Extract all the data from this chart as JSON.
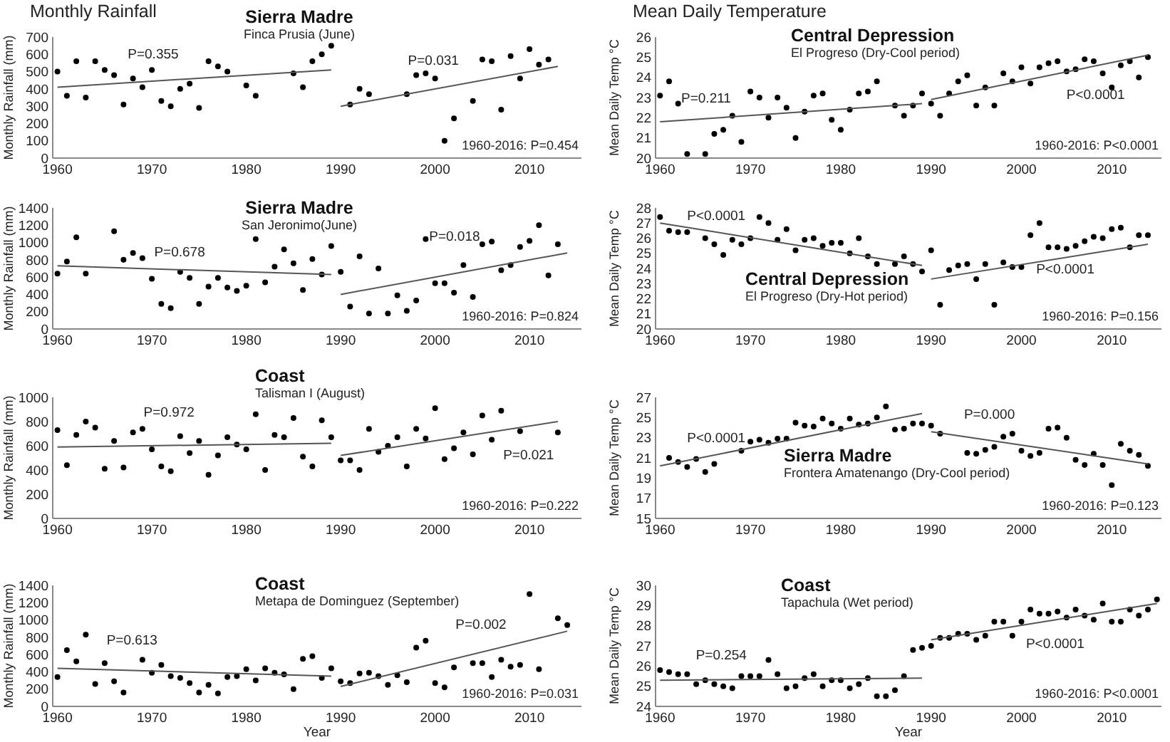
{
  "chart_data": [
    {
      "type": "scatter",
      "title": "Sierra Madre",
      "subtitle": "Finca Prusia (June)",
      "ylabel": "Monthly Rainfall (mm)",
      "xlim": [
        1959.5,
        2015.5
      ],
      "xticks": [
        1960,
        1970,
        1980,
        1990,
        2000,
        2010
      ],
      "ylim": [
        0,
        700
      ],
      "yticks": [
        0,
        100,
        200,
        300,
        400,
        500,
        600,
        700
      ],
      "annotations": [
        "Monthly Rainfall",
        "P=0.355",
        "P=0.031",
        "1960-2016: P=0.454"
      ],
      "series": [
        {
          "marker": "circle",
          "color": "#000000",
          "x": [
            1960,
            1961,
            1962,
            1963,
            1964,
            1965,
            1966,
            1967,
            1968,
            1969,
            1970,
            1971,
            1972,
            1973,
            1974,
            1975,
            1976,
            1977,
            1978,
            1980,
            1981,
            1985,
            1986,
            1987,
            1988,
            1989,
            1991,
            1992,
            1993,
            1997,
            1998,
            1999,
            2000,
            2001,
            2002,
            2004,
            2005,
            2006,
            2007,
            2008,
            2009,
            2010,
            2011,
            2012
          ],
          "values": [
            500,
            360,
            560,
            350,
            560,
            510,
            480,
            310,
            460,
            410,
            510,
            330,
            300,
            400,
            430,
            290,
            560,
            530,
            500,
            420,
            360,
            490,
            410,
            560,
            600,
            650,
            310,
            400,
            370,
            370,
            480,
            490,
            460,
            100,
            230,
            330,
            570,
            560,
            280,
            590,
            460,
            630,
            540,
            570
          ]
        },
        {
          "type": "line",
          "color": "#555555",
          "x": [
            1960,
            1989
          ],
          "values": [
            410,
            510
          ]
        },
        {
          "type": "line",
          "color": "#555555",
          "x": [
            1990,
            2013
          ],
          "values": [
            300,
            530
          ]
        }
      ]
    },
    {
      "type": "scatter",
      "title": "Central Depression",
      "subtitle": "El Progreso (Dry-Cool period)",
      "ylabel": "Mean Daily Temp °C",
      "xlim": [
        1959.5,
        2015.5
      ],
      "xticks": [
        1960,
        1970,
        1980,
        1990,
        2000,
        2010
      ],
      "ylim": [
        20,
        26
      ],
      "yticks": [
        20,
        21,
        22,
        23,
        24,
        25,
        26
      ],
      "annotations": [
        "Mean Daily Temperature",
        "P=0.211",
        "P<0.0001",
        "1960-2016: P<0.0001"
      ],
      "series": [
        {
          "marker": "circle",
          "color": "#000000",
          "x": [
            1960,
            1961,
            1962,
            1963,
            1965,
            1966,
            1967,
            1968,
            1969,
            1970,
            1971,
            1972,
            1973,
            1974,
            1975,
            1976,
            1977,
            1978,
            1979,
            1980,
            1981,
            1982,
            1983,
            1984,
            1986,
            1987,
            1988,
            1989,
            1990,
            1991,
            1992,
            1993,
            1994,
            1995,
            1996,
            1997,
            1998,
            1999,
            2000,
            2001,
            2002,
            2003,
            2004,
            2005,
            2006,
            2007,
            2008,
            2009,
            2010,
            2011,
            2012,
            2013,
            2014
          ],
          "values": [
            23.1,
            23.8,
            22.7,
            20.2,
            20.2,
            21.2,
            21.4,
            22.1,
            20.8,
            23.3,
            23.0,
            22.0,
            23.0,
            22.5,
            21.0,
            22.3,
            23.1,
            23.2,
            21.9,
            21.4,
            22.4,
            23.2,
            23.3,
            23.8,
            22.6,
            22.1,
            22.6,
            23.2,
            22.7,
            22.1,
            23.2,
            23.8,
            24.1,
            22.6,
            23.5,
            22.6,
            24.2,
            23.8,
            24.5,
            23.7,
            24.5,
            24.7,
            24.8,
            24.3,
            24.4,
            24.9,
            24.8,
            24.2,
            23.5,
            24.6,
            24.8,
            24.0,
            25.0
          ]
        },
        {
          "type": "line",
          "color": "#555555",
          "x": [
            1960,
            1989
          ],
          "values": [
            21.8,
            22.7
          ]
        },
        {
          "type": "line",
          "color": "#555555",
          "x": [
            1990,
            2014
          ],
          "values": [
            22.9,
            25.1
          ]
        }
      ]
    },
    {
      "type": "scatter",
      "title": "Sierra Madre",
      "subtitle": "San Jeronimo(June)",
      "ylabel": "Monthly Rainfall (mm)",
      "xlim": [
        1959.5,
        2015.5
      ],
      "xticks": [
        1960,
        1970,
        1980,
        1990,
        2000,
        2010
      ],
      "ylim": [
        0,
        1400
      ],
      "yticks": [
        0,
        200,
        400,
        600,
        800,
        1000,
        1200,
        1400
      ],
      "annotations": [
        "P=0.678",
        "P=0.018",
        "1960-2016: P=0.824"
      ],
      "series": [
        {
          "marker": "circle",
          "color": "#000000",
          "x": [
            1960,
            1961,
            1962,
            1963,
            1966,
            1967,
            1968,
            1969,
            1970,
            1971,
            1972,
            1973,
            1974,
            1975,
            1976,
            1977,
            1978,
            1979,
            1980,
            1981,
            1982,
            1983,
            1984,
            1985,
            1986,
            1987,
            1988,
            1989,
            1990,
            1991,
            1992,
            1993,
            1994,
            1995,
            1996,
            1997,
            1998,
            1999,
            2000,
            2001,
            2002,
            2003,
            2004,
            2005,
            2006,
            2007,
            2008,
            2009,
            2010,
            2011,
            2012,
            2013
          ],
          "values": [
            640,
            780,
            1060,
            640,
            1130,
            800,
            880,
            820,
            580,
            290,
            240,
            660,
            590,
            290,
            490,
            590,
            480,
            440,
            500,
            1040,
            540,
            720,
            920,
            760,
            450,
            810,
            630,
            960,
            660,
            260,
            840,
            180,
            700,
            180,
            390,
            210,
            330,
            1040,
            530,
            530,
            420,
            740,
            370,
            980,
            1010,
            680,
            740,
            950,
            1020,
            1200,
            620,
            980
          ]
        },
        {
          "type": "line",
          "color": "#555555",
          "x": [
            1960,
            1989
          ],
          "values": [
            730,
            630
          ]
        },
        {
          "type": "line",
          "color": "#555555",
          "x": [
            1990,
            2014
          ],
          "values": [
            400,
            880
          ]
        }
      ]
    },
    {
      "type": "scatter",
      "title": "Central Depression",
      "subtitle": "El Progreso (Dry-Hot period)",
      "ylabel": "Mean Daily Temp °C",
      "xlim": [
        1959.5,
        2015.5
      ],
      "xticks": [
        1960,
        1970,
        1980,
        1990,
        2000,
        2010
      ],
      "ylim": [
        20,
        28
      ],
      "yticks": [
        20,
        21,
        22,
        23,
        24,
        25,
        26,
        27,
        28
      ],
      "annotations": [
        "P<0.0001",
        "P<0.0001",
        "1960-2016: P=0.156"
      ],
      "series": [
        {
          "marker": "circle",
          "color": "#000000",
          "x": [
            1960,
            1961,
            1962,
            1963,
            1965,
            1966,
            1967,
            1968,
            1969,
            1970,
            1971,
            1972,
            1973,
            1974,
            1975,
            1976,
            1977,
            1978,
            1979,
            1980,
            1981,
            1982,
            1983,
            1984,
            1986,
            1987,
            1988,
            1989,
            1990,
            1991,
            1992,
            1993,
            1994,
            1995,
            1996,
            1997,
            1998,
            1999,
            2000,
            2001,
            2002,
            2003,
            2004,
            2005,
            2006,
            2007,
            2008,
            2009,
            2010,
            2011,
            2012,
            2013,
            2014
          ],
          "values": [
            27.4,
            26.5,
            26.4,
            26.4,
            26.0,
            25.6,
            24.9,
            25.9,
            25.6,
            26.0,
            27.4,
            27.0,
            25.9,
            26.6,
            25.2,
            25.9,
            26.0,
            25.5,
            25.7,
            25.7,
            25.0,
            26.0,
            24.8,
            24.3,
            24.3,
            24.8,
            24.3,
            23.8,
            25.2,
            21.6,
            23.9,
            24.2,
            24.3,
            23.3,
            24.3,
            21.6,
            24.4,
            24.1,
            24.1,
            26.2,
            27.0,
            25.4,
            25.4,
            25.3,
            25.5,
            25.8,
            26.1,
            26.0,
            26.6,
            26.7,
            25.4,
            26.2,
            26.2
          ]
        },
        {
          "type": "line",
          "color": "#555555",
          "x": [
            1960,
            1989
          ],
          "values": [
            27.0,
            24.2
          ]
        },
        {
          "type": "line",
          "color": "#555555",
          "x": [
            1990,
            2014
          ],
          "values": [
            23.3,
            25.6
          ]
        }
      ]
    },
    {
      "type": "scatter",
      "title": "Coast",
      "subtitle": "Talisman I (August)",
      "ylabel": "Monthly Rainfall (mm)",
      "xlim": [
        1959.5,
        2015.5
      ],
      "xticks": [
        1960,
        1970,
        1980,
        1990,
        2000,
        2010
      ],
      "ylim": [
        0,
        1000
      ],
      "yticks": [
        0,
        200,
        400,
        600,
        800,
        1000
      ],
      "annotations": [
        "P=0.972",
        "P=0.021",
        "1960-2016: P=0.222"
      ],
      "series": [
        {
          "marker": "circle",
          "color": "#000000",
          "x": [
            1960,
            1961,
            1962,
            1963,
            1964,
            1965,
            1966,
            1967,
            1968,
            1969,
            1970,
            1971,
            1972,
            1973,
            1974,
            1975,
            1976,
            1977,
            1978,
            1979,
            1980,
            1981,
            1982,
            1983,
            1984,
            1985,
            1986,
            1987,
            1988,
            1989,
            1990,
            1991,
            1992,
            1993,
            1994,
            1995,
            1996,
            1997,
            1998,
            1999,
            2000,
            2001,
            2002,
            2003,
            2004,
            2005,
            2006,
            2007,
            2009,
            2013
          ],
          "values": [
            730,
            440,
            690,
            800,
            750,
            410,
            640,
            420,
            710,
            740,
            570,
            430,
            390,
            680,
            540,
            640,
            360,
            520,
            670,
            610,
            570,
            860,
            400,
            690,
            670,
            830,
            510,
            430,
            810,
            670,
            480,
            480,
            400,
            740,
            550,
            600,
            670,
            430,
            740,
            660,
            910,
            490,
            580,
            710,
            530,
            850,
            650,
            890,
            720,
            710
          ]
        },
        {
          "type": "line",
          "color": "#555555",
          "x": [
            1960,
            1989
          ],
          "values": [
            590,
            620
          ]
        },
        {
          "type": "line",
          "color": "#555555",
          "x": [
            1990,
            2013
          ],
          "values": [
            520,
            800
          ]
        }
      ]
    },
    {
      "type": "scatter",
      "title": "Sierra Madre",
      "subtitle": "Frontera Amatenango (Dry-Cool period)",
      "ylabel": "Mean Daily Temp °C",
      "xlim": [
        1959.5,
        2015.5
      ],
      "xticks": [
        1960,
        1970,
        1980,
        1990,
        2000,
        2010
      ],
      "ylim": [
        15,
        27
      ],
      "yticks": [
        15,
        17,
        19,
        21,
        23,
        25,
        27
      ],
      "annotations": [
        "P<0.0001",
        "P=0.000",
        "1960-2016: P=0.123"
      ],
      "series": [
        {
          "marker": "circle",
          "color": "#000000",
          "x": [
            1961,
            1962,
            1963,
            1964,
            1965,
            1966,
            1969,
            1970,
            1971,
            1972,
            1973,
            1974,
            1975,
            1976,
            1977,
            1978,
            1979,
            1980,
            1981,
            1982,
            1983,
            1984,
            1985,
            1986,
            1987,
            1988,
            1989,
            1990,
            1991,
            1994,
            1995,
            1996,
            1997,
            1998,
            1999,
            2000,
            2001,
            2002,
            2003,
            2004,
            2005,
            2006,
            2007,
            2008,
            2009,
            2010,
            2011,
            2012,
            2013,
            2014
          ],
          "values": [
            21.0,
            20.6,
            20.1,
            20.9,
            19.6,
            20.4,
            21.7,
            22.6,
            22.8,
            22.5,
            22.9,
            22.9,
            24.5,
            24.2,
            24.1,
            24.9,
            24.4,
            23.9,
            24.9,
            24.3,
            24.4,
            25.0,
            26.1,
            23.8,
            23.9,
            24.4,
            24.4,
            24.2,
            23.4,
            21.5,
            21.4,
            21.8,
            22.1,
            23.1,
            23.4,
            21.7,
            21.2,
            21.5,
            23.9,
            24.0,
            23.0,
            20.8,
            20.3,
            21.4,
            20.3,
            18.3,
            22.4,
            21.7,
            21.3,
            20.2
          ]
        },
        {
          "type": "line",
          "color": "#555555",
          "x": [
            1960,
            1989
          ],
          "values": [
            20.2,
            25.4
          ]
        },
        {
          "type": "line",
          "color": "#555555",
          "x": [
            1990,
            2014
          ],
          "values": [
            23.6,
            20.4
          ]
        }
      ]
    },
    {
      "type": "scatter",
      "title": "Coast",
      "subtitle": "Metapa de Dominguez (September)",
      "xlabel": "Year",
      "ylabel": "Monthly Rainfall (mm)",
      "xlim": [
        1959.5,
        2015.5
      ],
      "xticks": [
        1960,
        1970,
        1980,
        1990,
        2000,
        2010
      ],
      "ylim": [
        0,
        1400
      ],
      "yticks": [
        0,
        200,
        400,
        600,
        800,
        1000,
        1200,
        1400
      ],
      "annotations": [
        "P=0.613",
        "P=0.002",
        "1960-2016: P=0.031"
      ],
      "series": [
        {
          "marker": "circle",
          "color": "#000000",
          "x": [
            1960,
            1961,
            1962,
            1963,
            1964,
            1965,
            1966,
            1967,
            1969,
            1970,
            1971,
            1972,
            1973,
            1974,
            1975,
            1976,
            1977,
            1978,
            1979,
            1980,
            1981,
            1982,
            1983,
            1984,
            1985,
            1986,
            1987,
            1988,
            1989,
            1990,
            1991,
            1992,
            1993,
            1994,
            1995,
            1996,
            1997,
            1998,
            1999,
            2000,
            2001,
            2002,
            2004,
            2005,
            2006,
            2007,
            2008,
            2009,
            2010,
            2011,
            2013,
            2014
          ],
          "values": [
            340,
            650,
            520,
            830,
            260,
            500,
            290,
            160,
            540,
            390,
            480,
            350,
            330,
            270,
            160,
            250,
            150,
            340,
            350,
            430,
            300,
            440,
            390,
            370,
            200,
            550,
            580,
            330,
            440,
            290,
            270,
            380,
            390,
            350,
            250,
            360,
            280,
            680,
            760,
            270,
            220,
            450,
            500,
            500,
            340,
            540,
            460,
            480,
            1300,
            430,
            1020,
            940
          ]
        },
        {
          "type": "line",
          "color": "#555555",
          "x": [
            1960,
            1989
          ],
          "values": [
            440,
            350
          ]
        },
        {
          "type": "line",
          "color": "#555555",
          "x": [
            1990,
            2014
          ],
          "values": [
            230,
            870
          ]
        }
      ]
    },
    {
      "type": "scatter",
      "title": "Coast",
      "subtitle": "Tapachula (Wet period)",
      "xlabel": "Year",
      "ylabel": "Mean Daily Temp °C",
      "xlim": [
        1959.5,
        2015.5
      ],
      "xticks": [
        1960,
        1970,
        1980,
        1990,
        2000,
        2010
      ],
      "ylim": [
        24,
        30
      ],
      "yticks": [
        24,
        25,
        26,
        27,
        28,
        29,
        30
      ],
      "annotations": [
        "P=0.254",
        "P<0.0001",
        "1960-2016: P<0.0001"
      ],
      "series": [
        {
          "marker": "circle",
          "color": "#000000",
          "x": [
            1960,
            1961,
            1962,
            1963,
            1964,
            1965,
            1966,
            1967,
            1968,
            1969,
            1970,
            1971,
            1972,
            1973,
            1974,
            1975,
            1976,
            1977,
            1978,
            1979,
            1980,
            1981,
            1982,
            1983,
            1984,
            1985,
            1986,
            1987,
            1988,
            1989,
            1990,
            1991,
            1992,
            1993,
            1994,
            1995,
            1996,
            1997,
            1998,
            1999,
            2000,
            2001,
            2002,
            2003,
            2004,
            2005,
            2006,
            2007,
            2008,
            2009,
            2010,
            2011,
            2012,
            2013,
            2014,
            2015
          ],
          "values": [
            25.8,
            25.7,
            25.6,
            25.6,
            25.1,
            25.3,
            25.1,
            25.0,
            24.9,
            25.5,
            25.5,
            25.5,
            26.3,
            25.6,
            24.9,
            25.0,
            25.4,
            25.6,
            25.0,
            25.3,
            25.3,
            24.9,
            25.1,
            25.4,
            24.5,
            24.5,
            24.8,
            25.5,
            26.8,
            26.9,
            27.0,
            27.4,
            27.4,
            27.6,
            27.6,
            27.3,
            27.5,
            28.2,
            28.2,
            27.5,
            28.2,
            28.8,
            28.6,
            28.6,
            28.7,
            28.4,
            28.8,
            28.5,
            28.3,
            29.1,
            28.2,
            28.2,
            28.8,
            28.5,
            28.8,
            29.3
          ]
        },
        {
          "type": "line",
          "color": "#555555",
          "x": [
            1960,
            1989
          ],
          "values": [
            25.3,
            25.4
          ]
        },
        {
          "type": "line",
          "color": "#555555",
          "x": [
            1990,
            2015
          ],
          "values": [
            27.3,
            29.1
          ]
        }
      ]
    }
  ]
}
